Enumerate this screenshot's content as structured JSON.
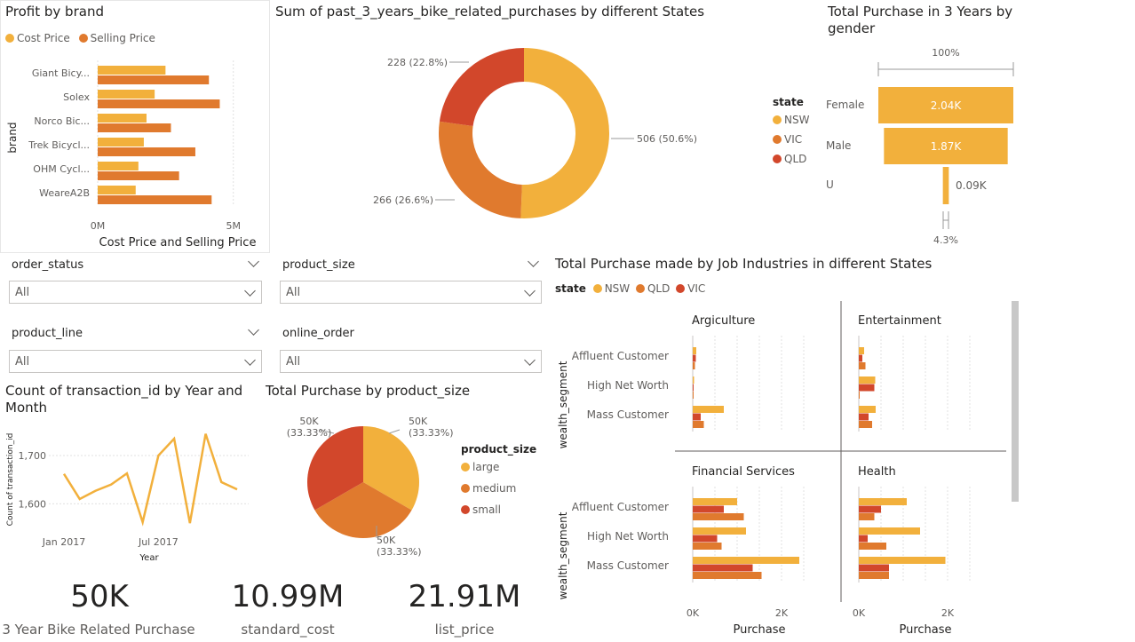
{
  "colors": {
    "nsw": "#f2b03c",
    "vic": "#e07a2e",
    "qld": "#d2472b",
    "cost": "#f2b03c",
    "sell": "#e07a2e",
    "large": "#f2b03c",
    "medium": "#e07a2e",
    "small": "#d2472b",
    "line": "#f2b03c"
  },
  "profit": {
    "title": "Profit by brand",
    "legend_cost": "Cost Price",
    "legend_sell": "Selling Price",
    "ylabel": "brand",
    "xlabel": "Cost Price and Selling Price",
    "xticks": [
      "0M",
      "5M"
    ]
  },
  "donut": {
    "title": "Sum of past_3_years_bike_related_purchases by different States"
  },
  "gender": {
    "title_line1": "Total Purchase in 3 Years by",
    "title_line2": "gender",
    "top_label": "100%",
    "bottom_label": "4.3%",
    "legend_title": "state",
    "legend": [
      "NSW",
      "VIC",
      "QLD"
    ]
  },
  "slicers": [
    {
      "label": "order_status",
      "value": "All"
    },
    {
      "label": "product_size",
      "value": "All"
    },
    {
      "label": "product_line",
      "value": "All"
    },
    {
      "label": "online_order",
      "value": "All"
    }
  ],
  "line": {
    "title_line1": "Count of transaction_id by Year and",
    "title_line2": "Month",
    "ylabel": "Count of transaction_id",
    "xlabel": "Year"
  },
  "pie": {
    "title": "Total Purchase by product_size",
    "legend_title": "product_size",
    "legend": [
      "large",
      "medium",
      "small"
    ]
  },
  "industry": {
    "title": "Total Purchase made by Job Industries in different States",
    "legend_title": "state",
    "legend": [
      "NSW",
      "QLD",
      "VIC"
    ],
    "ylabel": "wealth_segment",
    "xlabel": "Purchase",
    "xticks": [
      "0K",
      "2K"
    ]
  },
  "kpis": [
    {
      "value": "50K",
      "label": "3 Year Bike Related Purchase"
    },
    {
      "value": "10.99M",
      "label": "standard_cost"
    },
    {
      "value": "21.91M",
      "label": "list_price"
    }
  ],
  "chart_data": [
    {
      "type": "bar",
      "orientation": "horizontal",
      "title": "Profit by brand",
      "categories": [
        "Giant Bicy...",
        "Solex",
        "Norco Bic...",
        "Trek Bicycl...",
        "OHM Cycl...",
        "WeareA2B"
      ],
      "series": [
        {
          "name": "Cost Price",
          "values": [
            2.5,
            2.1,
            1.8,
            1.7,
            1.5,
            1.4
          ]
        },
        {
          "name": "Selling Price",
          "values": [
            4.1,
            4.5,
            2.7,
            3.6,
            3.0,
            4.2
          ]
        }
      ],
      "xlabel": "Cost Price and Selling Price",
      "ylabel": "brand",
      "xlim": [
        0,
        5.5
      ],
      "unit": "M"
    },
    {
      "type": "pie",
      "variant": "donut",
      "title": "Sum of past_3_years_bike_related_purchases by different States",
      "labels": [
        "NSW",
        "VIC",
        "QLD"
      ],
      "values": [
        506,
        266,
        228
      ],
      "data_labels": [
        "506 (50.6%)",
        "266 (26.6%)",
        "228 (22.8%)"
      ]
    },
    {
      "type": "bar",
      "variant": "funnel",
      "title": "Total Purchase in 3 Years by gender",
      "categories": [
        "Female",
        "Male",
        "U"
      ],
      "values": [
        2.04,
        1.87,
        0.09
      ],
      "data_labels": [
        "2.04K",
        "1.87K",
        "0.09K"
      ],
      "unit": "K"
    },
    {
      "type": "line",
      "title": "Count of transaction_id by Year and Month",
      "x": [
        "Jan 2017",
        "Feb 2017",
        "Mar 2017",
        "Apr 2017",
        "May 2017",
        "Jun 2017",
        "Jul 2017",
        "Aug 2017",
        "Sep 2017",
        "Oct 2017",
        "Nov 2017",
        "Dec 2017"
      ],
      "values": [
        1662,
        1610,
        1627,
        1640,
        1663,
        1562,
        1700,
        1735,
        1560,
        1745,
        1645,
        1630
      ],
      "xticks": [
        "Jan 2017",
        "Jul 2017"
      ],
      "yticks": [
        "1,600",
        "1,700"
      ],
      "ylim": [
        1540,
        1770
      ],
      "xlabel": "Year",
      "ylabel": "Count of transaction_id"
    },
    {
      "type": "pie",
      "title": "Total Purchase by product_size",
      "labels": [
        "large",
        "medium",
        "small"
      ],
      "values": [
        50,
        50,
        50
      ],
      "data_labels": [
        "50K\n(33.33%)",
        "50K\n(33.33%)",
        "50K\n(33.33%)"
      ]
    },
    {
      "type": "bar",
      "orientation": "horizontal",
      "variant": "small-multiples",
      "title": "Total Purchase made by Job Industries in different States",
      "categories": [
        "Affluent Customer",
        "High Net Worth",
        "Mass Customer"
      ],
      "series_names": [
        "NSW",
        "QLD",
        "VIC"
      ],
      "xlim": [
        0,
        2.6
      ],
      "xticks": [
        "0K",
        "2K"
      ],
      "xlabel": "Purchase",
      "ylabel": "wealth_segment",
      "unit": "K",
      "panels": [
        {
          "name": "Argiculture",
          "values": {
            "NSW": [
              0.08,
              0.03,
              0.7
            ],
            "QLD": [
              0.07,
              0.02,
              0.18
            ],
            "VIC": [
              0.05,
              0.01,
              0.25
            ]
          }
        },
        {
          "name": "Entertainment",
          "values": {
            "NSW": [
              0.12,
              0.37,
              0.38
            ],
            "QLD": [
              0.08,
              0.35,
              0.22
            ],
            "VIC": [
              0.15,
              0.02,
              0.3
            ]
          }
        },
        {
          "name": "Financial Services",
          "values": {
            "NSW": [
              1.0,
              1.2,
              2.4
            ],
            "QLD": [
              0.7,
              0.55,
              1.35
            ],
            "VIC": [
              1.15,
              0.65,
              1.55
            ]
          }
        },
        {
          "name": "Health",
          "values": {
            "NSW": [
              1.08,
              1.38,
              1.95
            ],
            "QLD": [
              0.5,
              0.2,
              0.68
            ],
            "VIC": [
              0.35,
              0.62,
              0.68
            ]
          }
        }
      ]
    }
  ]
}
